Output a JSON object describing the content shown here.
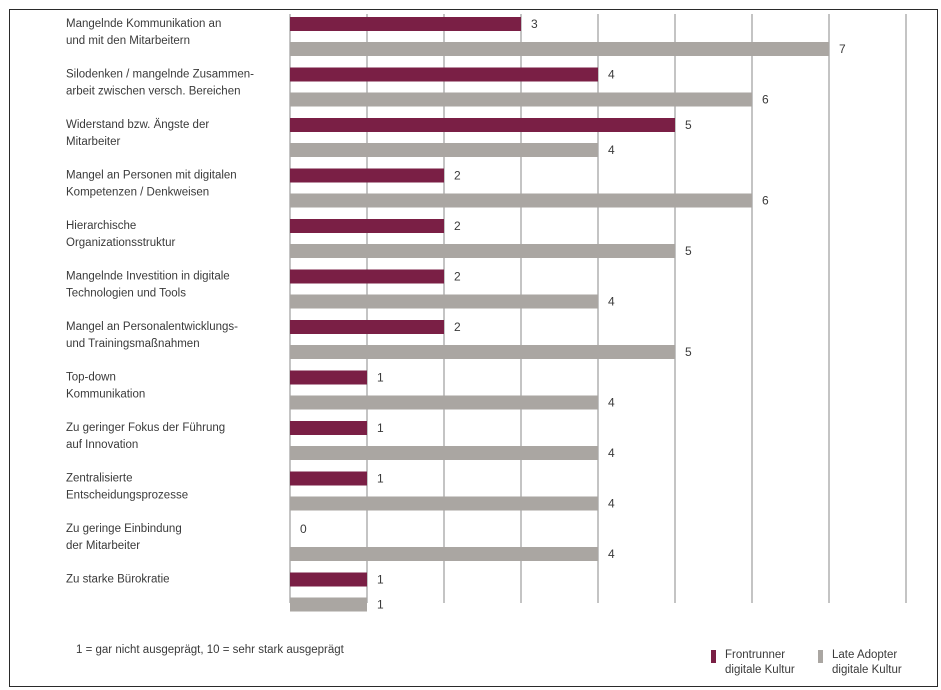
{
  "chart_data": {
    "type": "bar",
    "orientation": "horizontal",
    "categories": [
      [
        "Mangelnde Kommunikation an",
        "und mit den Mitarbeitern"
      ],
      [
        "Silodenken / mangelnde Zusammen-",
        "arbeit zwischen versch. Bereichen"
      ],
      [
        "Widerstand bzw. Ängste der",
        "Mitarbeiter"
      ],
      [
        "Mangel an Personen mit digitalen",
        "Kompetenzen / Denkweisen"
      ],
      [
        "Hierarchische",
        "Organizationsstruktur"
      ],
      [
        "Mangelnde Investition in digitale",
        "Technologien und Tools"
      ],
      [
        "Mangel an Personalentwicklungs-",
        "und Trainingsmaßnahmen"
      ],
      [
        "Top-down",
        "Kommunikation"
      ],
      [
        "Zu geringer Fokus der Führung",
        "auf Innovation"
      ],
      [
        "Zentralisierte",
        "Entscheidungsprozesse"
      ],
      [
        "Zu geringe Einbindung",
        "der Mitarbeiter"
      ],
      [
        "Zu starke Bürokratie"
      ]
    ],
    "series": [
      {
        "name": "Frontrunner digitale Kultur",
        "color": "#7a1f45",
        "values": [
          3,
          4,
          5,
          2,
          2,
          2,
          2,
          1,
          1,
          1,
          0,
          1
        ]
      },
      {
        "name": "Late Adopter digitale Kultur",
        "color": "#aaa6a2",
        "values": [
          7,
          6,
          4,
          6,
          5,
          4,
          5,
          4,
          4,
          4,
          4,
          1
        ]
      }
    ],
    "xlim": [
      0,
      8
    ],
    "grid": true
  },
  "footnote": "1 = gar nicht ausgeprägt, 10 = sehr stark ausgeprägt",
  "legend": [
    {
      "line1": "Frontrunner",
      "line2": "digitale Kultur",
      "color": "#7a1f45"
    },
    {
      "line1": "Late Adopter",
      "line2": "digitale Kultur",
      "color": "#aaa6a2"
    }
  ]
}
